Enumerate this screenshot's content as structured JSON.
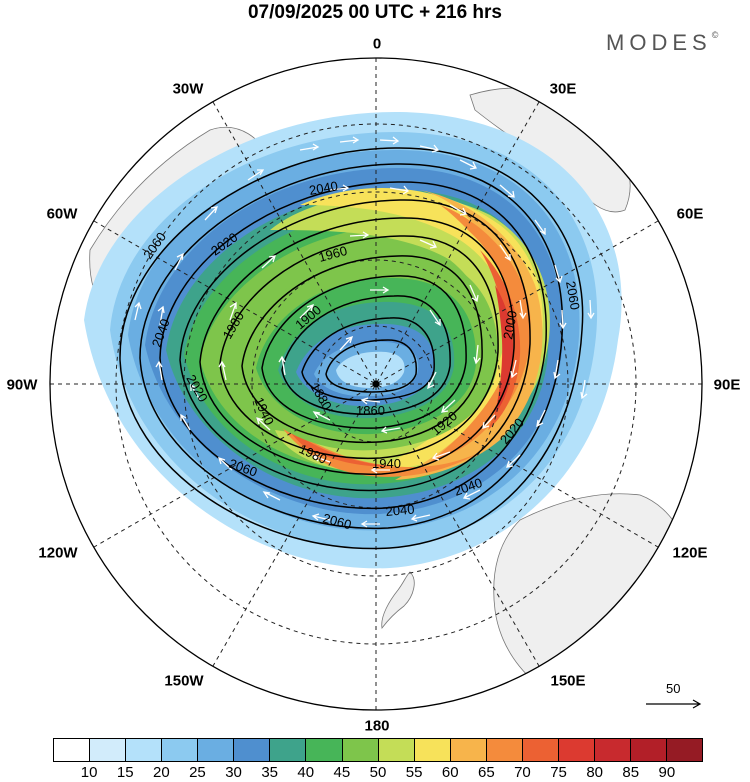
{
  "title": "07/09/2025  00 UTC  + 216 hrs",
  "brand": {
    "name": "MODES",
    "mark": "©"
  },
  "longitude_labels": {
    "lon_0": "0",
    "lon_30e": "30E",
    "lon_60e": "60E",
    "lon_90e": "90E",
    "lon_120e": "120E",
    "lon_150e": "150E",
    "lon_180": "180",
    "lon_150w": "150W",
    "lon_120w": "120W",
    "lon_90w": "90W",
    "lon_60w": "60W",
    "lon_30w": "30W"
  },
  "contour_labels": {
    "c2060": "2060",
    "c2040": "2040",
    "c2020": "2020",
    "c2000": "2000",
    "c1980": "1980",
    "c1960": "1960",
    "c1940": "1940",
    "c1920": "1920",
    "c1900": "1900",
    "c1880": "1880",
    "c1860": "1860"
  },
  "reference_vector": {
    "label": "50"
  },
  "colorbar": {
    "ticks": [
      "10",
      "15",
      "20",
      "25",
      "30",
      "35",
      "40",
      "45",
      "50",
      "55",
      "60",
      "65",
      "70",
      "75",
      "80",
      "85",
      "90"
    ],
    "colors": [
      "#ffffff",
      "#d2ecfb",
      "#b4e1fa",
      "#8ccaf0",
      "#6aaee2",
      "#4f8fcf",
      "#3ea38b",
      "#47b558",
      "#7ec54b",
      "#c4dd57",
      "#f7e25a",
      "#f7b44b",
      "#f48b3c",
      "#ec6133",
      "#dc3a30",
      "#c82a2e",
      "#b21f28",
      "#951b24"
    ]
  }
}
